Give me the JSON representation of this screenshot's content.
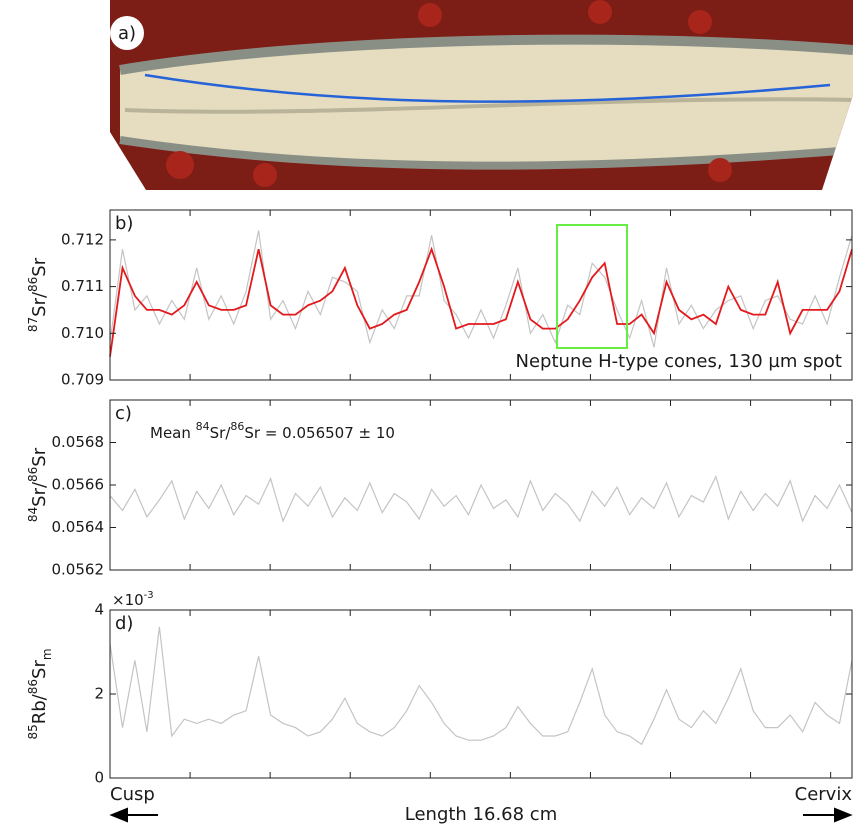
{
  "photo": {
    "label": "a)"
  },
  "chart_data": [
    {
      "type": "line",
      "panel_label": "b)",
      "ylabel": [
        "87",
        "Sr/",
        "86",
        "Sr"
      ],
      "annotation": "Neptune H-type cones, 130 µm spot",
      "xlim": [
        0,
        16.68
      ],
      "xticks": [
        1.8,
        3.6,
        5.4,
        7.2,
        9,
        10.8,
        12.6,
        14.4,
        16.2
      ],
      "ylim": [
        0.709,
        0.71264
      ],
      "yticks": [
        0.709,
        {
          "value": 0.71,
          "label": "0.710"
        },
        0.711,
        0.712
      ],
      "x": [
        0,
        0.28,
        0.56,
        0.83,
        1.11,
        1.39,
        1.67,
        1.95,
        2.22,
        2.5,
        2.78,
        3.06,
        3.34,
        3.61,
        3.89,
        4.17,
        4.45,
        4.73,
        5,
        5.28,
        5.56,
        5.84,
        6.12,
        6.39,
        6.67,
        6.95,
        7.23,
        7.51,
        7.78,
        8.06,
        8.34,
        8.62,
        8.9,
        9.17,
        9.45,
        9.73,
        10.01,
        10.29,
        10.56,
        10.84,
        11.12,
        11.4,
        11.68,
        11.95,
        12.23,
        12.51,
        12.79,
        13.07,
        13.34,
        13.62,
        13.9,
        14.18,
        14.46,
        14.73,
        15.01,
        15.29,
        15.57,
        15.85,
        16.12,
        16.4,
        16.68
      ],
      "series": [
        {
          "color": "#c4c4c4",
          "values": [
            0.7098,
            0.7118,
            0.7105,
            0.7108,
            0.7102,
            0.7107,
            0.7103,
            0.7114,
            0.7103,
            0.7108,
            0.7102,
            0.7109,
            0.7122,
            0.7103,
            0.7107,
            0.7101,
            0.7109,
            0.7104,
            0.7112,
            0.7111,
            0.7109,
            0.7098,
            0.7105,
            0.7101,
            0.7108,
            0.7108,
            0.7121,
            0.7107,
            0.7104,
            0.7099,
            0.7105,
            0.7099,
            0.7106,
            0.7114,
            0.71,
            0.7104,
            0.7098,
            0.7106,
            0.7104,
            0.7115,
            0.7112,
            0.7105,
            0.7099,
            0.7107,
            0.7097,
            0.7114,
            0.7102,
            0.7106,
            0.7101,
            0.7105,
            0.7107,
            0.7108,
            0.7101,
            0.7107,
            0.7108,
            0.7103,
            0.7102,
            0.7108,
            0.7102,
            0.7112,
            0.7121
          ]
        },
        {
          "color": "#e3191c",
          "values": [
            0.7095,
            0.7114,
            0.7108,
            0.7105,
            0.7105,
            0.7104,
            0.7106,
            0.7111,
            0.7106,
            0.7105,
            0.7105,
            0.7106,
            0.7118,
            0.7106,
            0.7104,
            0.7104,
            0.7106,
            0.7107,
            0.7109,
            0.7114,
            0.7106,
            0.7101,
            0.7102,
            0.7104,
            0.7105,
            0.7111,
            0.7118,
            0.711,
            0.7101,
            0.7102,
            0.7102,
            0.7102,
            0.7103,
            0.7111,
            0.7103,
            0.7101,
            0.7101,
            0.7103,
            0.7107,
            0.7112,
            0.7115,
            0.7102,
            0.7102,
            0.7104,
            0.71,
            0.7111,
            0.7105,
            0.7103,
            0.7104,
            0.7102,
            0.711,
            0.7105,
            0.7104,
            0.7104,
            0.7111,
            0.71,
            0.7105,
            0.7105,
            0.7105,
            0.7109,
            0.7118
          ]
        }
      ]
    },
    {
      "type": "line",
      "panel_label": "c)",
      "ylabel": [
        "84",
        "Sr/",
        "86",
        "Sr"
      ],
      "annotation": [
        "Mean ",
        "84",
        "Sr/",
        "86",
        "Sr = 0.056507 ± 10"
      ],
      "xlim": [
        0,
        16.68
      ],
      "xticks": [
        1.8,
        3.6,
        5.4,
        7.2,
        9,
        10.8,
        12.6,
        14.4,
        16.2
      ],
      "ylim": [
        0.0562,
        0.057
      ],
      "yticks": [
        0.0562,
        0.0564,
        0.0566,
        0.0568
      ],
      "x": [
        0,
        0.28,
        0.56,
        0.83,
        1.11,
        1.39,
        1.67,
        1.95,
        2.22,
        2.5,
        2.78,
        3.06,
        3.34,
        3.61,
        3.89,
        4.17,
        4.45,
        4.73,
        5,
        5.28,
        5.56,
        5.84,
        6.12,
        6.39,
        6.67,
        6.95,
        7.23,
        7.51,
        7.78,
        8.06,
        8.34,
        8.62,
        8.9,
        9.17,
        9.45,
        9.73,
        10.01,
        10.29,
        10.56,
        10.84,
        11.12,
        11.4,
        11.68,
        11.95,
        12.23,
        12.51,
        12.79,
        13.07,
        13.34,
        13.62,
        13.9,
        14.18,
        14.46,
        14.73,
        15.01,
        15.29,
        15.57,
        15.85,
        16.12,
        16.4,
        16.68
      ],
      "series": [
        {
          "color": "#c4c4c4",
          "values": [
            0.05655,
            0.05648,
            0.05658,
            0.05645,
            0.05653,
            0.05662,
            0.05644,
            0.05657,
            0.05649,
            0.0566,
            0.05646,
            0.05655,
            0.05651,
            0.05663,
            0.05643,
            0.05656,
            0.0565,
            0.05659,
            0.05645,
            0.05654,
            0.05648,
            0.05661,
            0.05647,
            0.05656,
            0.05652,
            0.05644,
            0.05658,
            0.0565,
            0.05655,
            0.05646,
            0.0566,
            0.05649,
            0.05653,
            0.05645,
            0.05662,
            0.05648,
            0.05656,
            0.05651,
            0.05643,
            0.05657,
            0.0565,
            0.05659,
            0.05646,
            0.05654,
            0.05649,
            0.05661,
            0.05645,
            0.05655,
            0.05652,
            0.05664,
            0.05644,
            0.05657,
            0.05648,
            0.05656,
            0.0565,
            0.05662,
            0.05643,
            0.05655,
            0.05649,
            0.0566,
            0.05647
          ]
        }
      ]
    },
    {
      "type": "line",
      "panel_label": "d)",
      "ylabel": [
        "85",
        "Rb/",
        "86",
        "Sr",
        "m"
      ],
      "multiplier": [
        "×10",
        "-3"
      ],
      "xlabel": "Length 16.68 cm",
      "x_start_label": "Cusp",
      "x_end_label": "Cervix",
      "xlim": [
        0,
        16.68
      ],
      "xticks": [
        1.8,
        3.6,
        5.4,
        7.2,
        9,
        10.8,
        12.6,
        14.4,
        16.2
      ],
      "ylim": [
        0,
        4
      ],
      "yticks": [
        0,
        2,
        4
      ],
      "x": [
        0,
        0.28,
        0.56,
        0.83,
        1.11,
        1.39,
        1.67,
        1.95,
        2.22,
        2.5,
        2.78,
        3.06,
        3.34,
        3.61,
        3.89,
        4.17,
        4.45,
        4.73,
        5,
        5.28,
        5.56,
        5.84,
        6.12,
        6.39,
        6.67,
        6.95,
        7.23,
        7.51,
        7.78,
        8.06,
        8.34,
        8.62,
        8.9,
        9.17,
        9.45,
        9.73,
        10.01,
        10.29,
        10.56,
        10.84,
        11.12,
        11.4,
        11.68,
        11.95,
        12.23,
        12.51,
        12.79,
        13.07,
        13.34,
        13.62,
        13.9,
        14.18,
        14.46,
        14.73,
        15.01,
        15.29,
        15.57,
        15.85,
        16.12,
        16.4,
        16.68
      ],
      "series": [
        {
          "color": "#c4c4c4",
          "values": [
            3.2,
            1.2,
            2.8,
            1.1,
            3.6,
            1.0,
            1.4,
            1.3,
            1.4,
            1.3,
            1.5,
            1.6,
            2.9,
            1.5,
            1.3,
            1.2,
            1.0,
            1.1,
            1.4,
            1.9,
            1.3,
            1.1,
            1.0,
            1.2,
            1.6,
            2.2,
            1.8,
            1.3,
            1.0,
            0.9,
            0.9,
            1.0,
            1.2,
            1.7,
            1.3,
            1.0,
            1.0,
            1.1,
            1.8,
            2.6,
            1.5,
            1.1,
            1.0,
            0.8,
            1.4,
            2.1,
            1.4,
            1.2,
            1.6,
            1.3,
            1.9,
            2.6,
            1.6,
            1.2,
            1.2,
            1.5,
            1.1,
            1.8,
            1.5,
            1.3,
            2.8
          ]
        }
      ]
    }
  ]
}
